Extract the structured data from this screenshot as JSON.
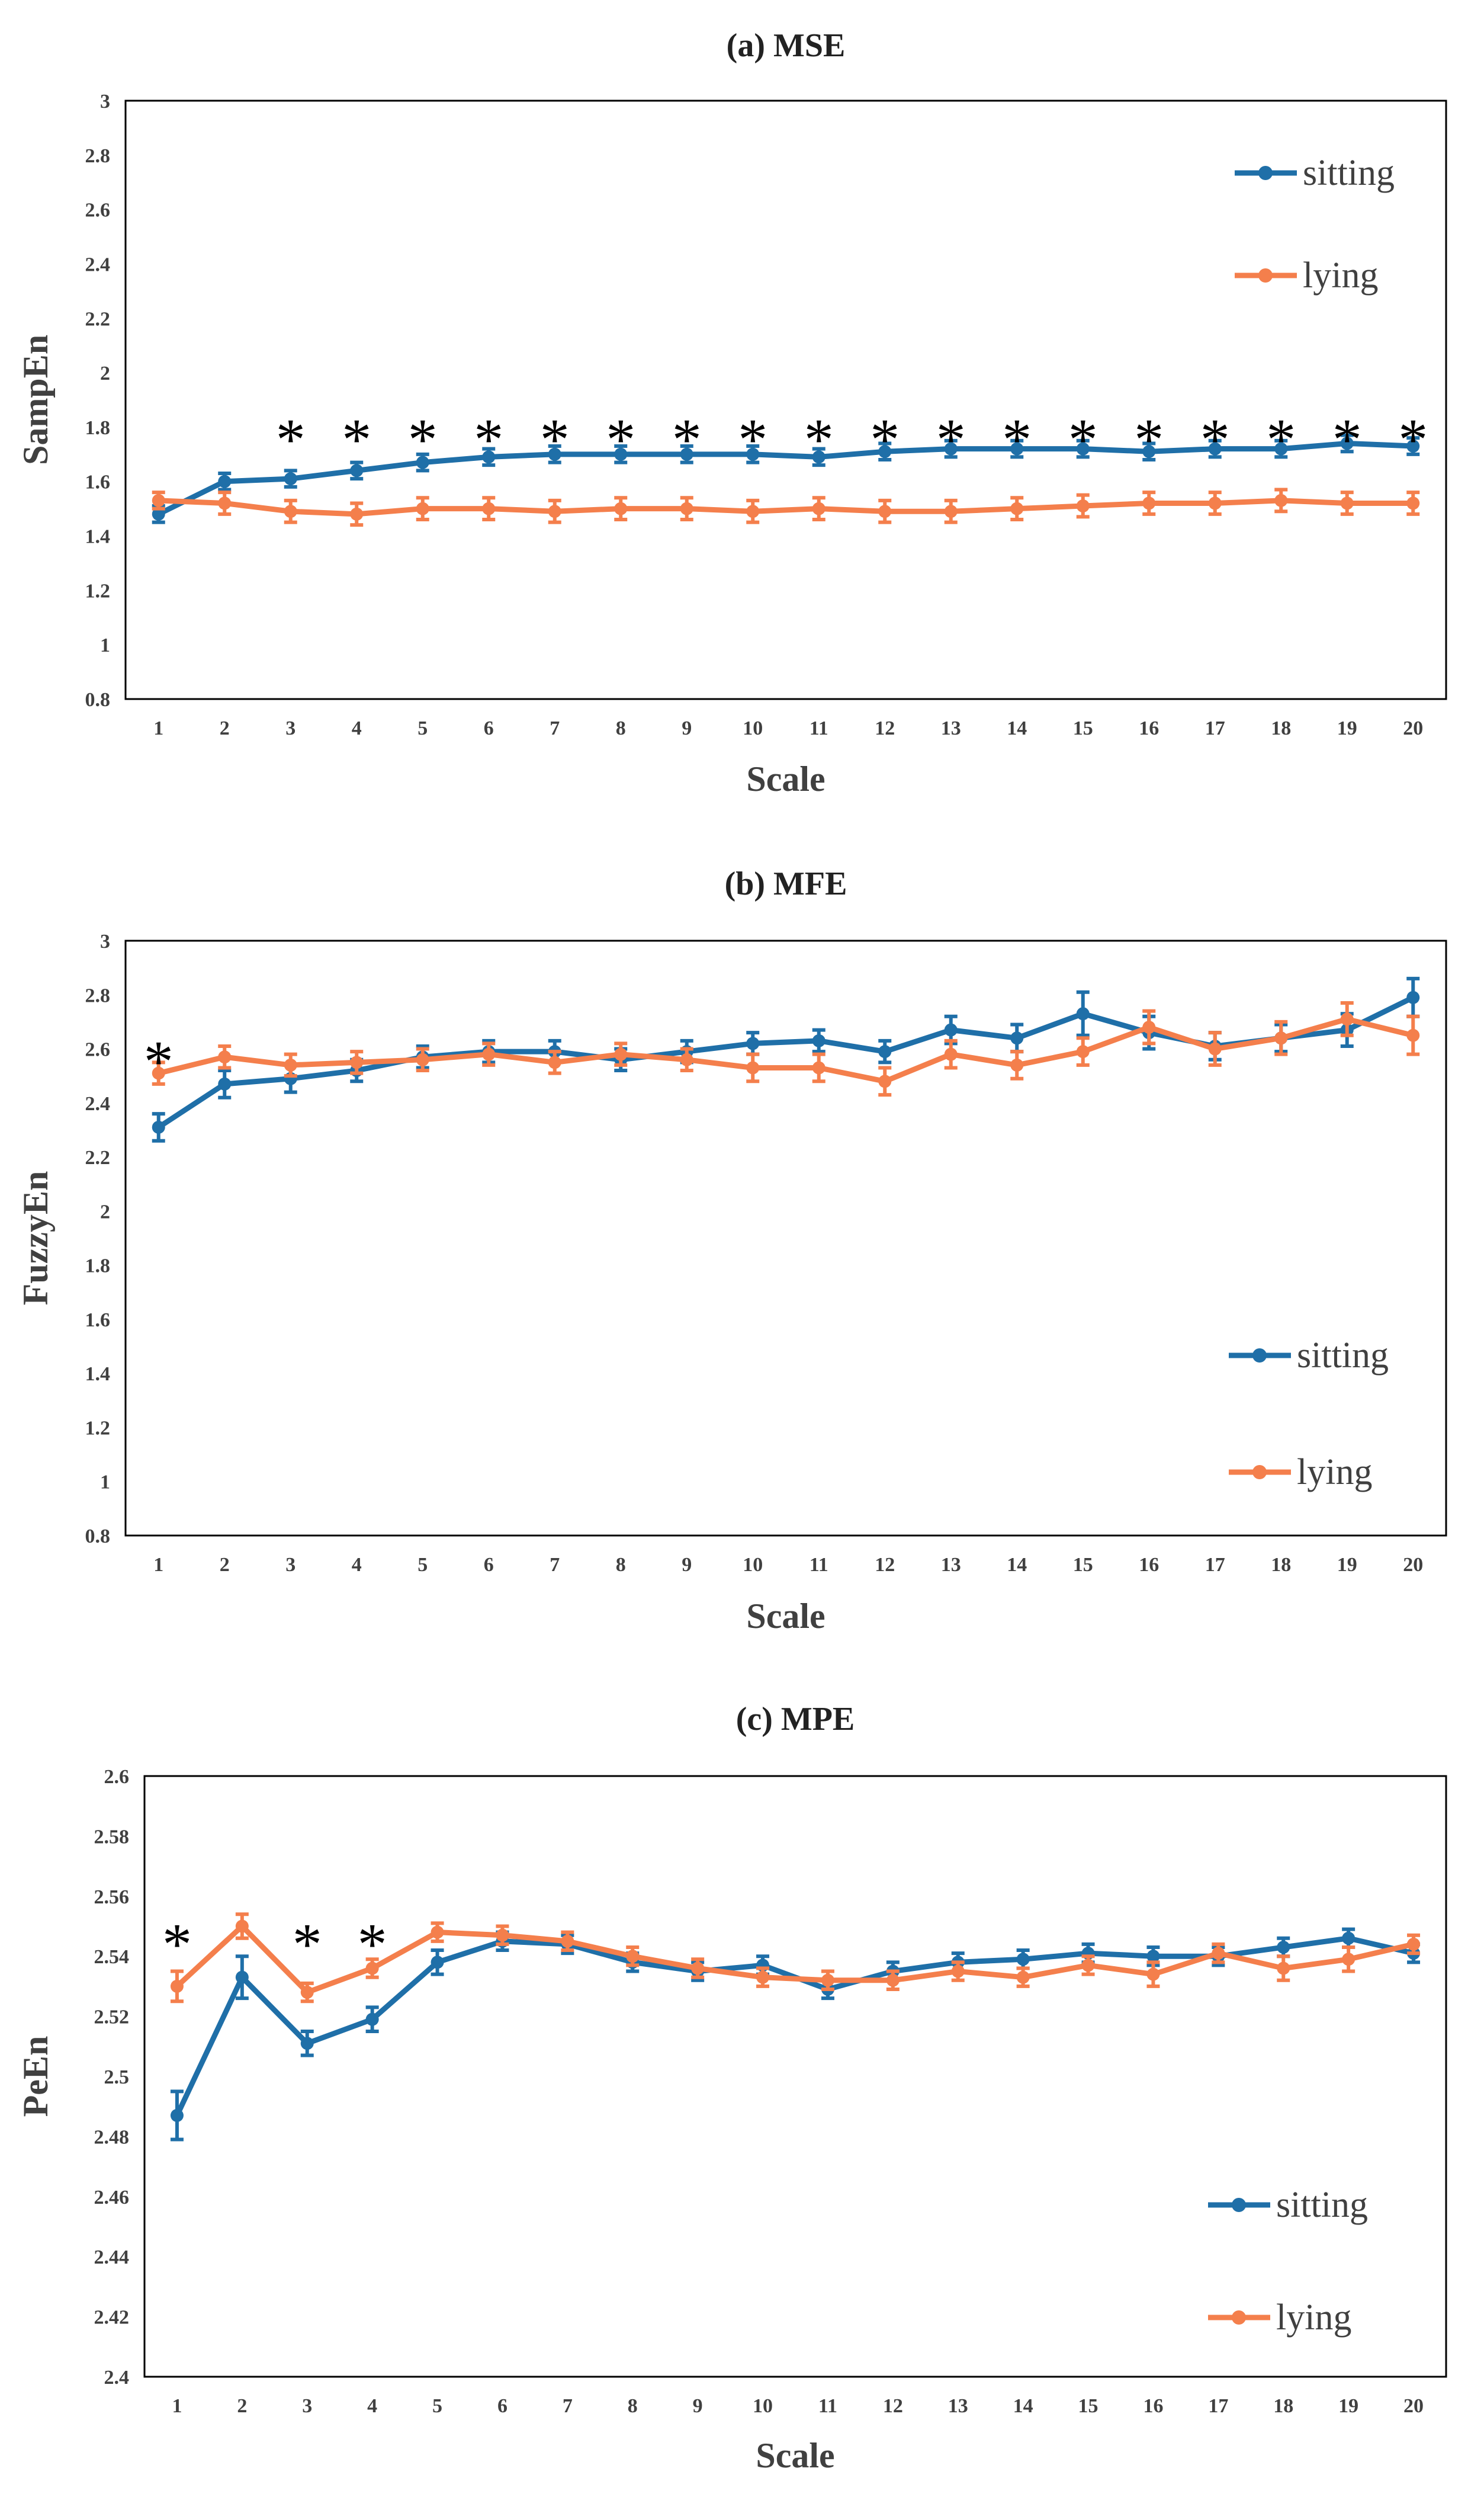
{
  "chart_data": [
    {
      "type": "line",
      "title": "(a) MSE",
      "xlabel": "Scale",
      "ylabel": "SampEn",
      "ylim": [
        0.8,
        3
      ],
      "yticks": [
        0.8,
        1,
        1.2,
        1.4,
        1.6,
        1.8,
        2,
        2.2,
        2.4,
        2.6,
        2.8,
        3
      ],
      "ytick_labels": [
        "0.8",
        "1",
        "1.2",
        "1.4",
        "1.6",
        "1.8",
        "2",
        "2.2",
        "2.4",
        "2.6",
        "2.8",
        "3"
      ],
      "categories": [
        "1",
        "2",
        "3",
        "4",
        "5",
        "6",
        "7",
        "8",
        "9",
        "10",
        "11",
        "12",
        "13",
        "14",
        "15",
        "16",
        "17",
        "18",
        "19",
        "20"
      ],
      "legend_position": "top-right",
      "annotation_symbol": "*",
      "significant_scales": [
        3,
        4,
        5,
        6,
        7,
        8,
        9,
        10,
        11,
        12,
        13,
        14,
        15,
        16,
        17,
        18,
        19,
        20
      ],
      "series": [
        {
          "name": "sitting",
          "color": "#1f6fa8",
          "values": [
            1.48,
            1.6,
            1.61,
            1.64,
            1.67,
            1.69,
            1.7,
            1.7,
            1.7,
            1.7,
            1.69,
            1.71,
            1.72,
            1.72,
            1.72,
            1.71,
            1.72,
            1.72,
            1.74,
            1.73
          ],
          "errors": [
            0.03,
            0.03,
            0.03,
            0.03,
            0.03,
            0.03,
            0.03,
            0.03,
            0.03,
            0.03,
            0.03,
            0.03,
            0.03,
            0.03,
            0.03,
            0.03,
            0.03,
            0.03,
            0.03,
            0.03
          ]
        },
        {
          "name": "lying",
          "color": "#f47f4c",
          "values": [
            1.53,
            1.52,
            1.49,
            1.48,
            1.5,
            1.5,
            1.49,
            1.5,
            1.5,
            1.49,
            1.5,
            1.49,
            1.49,
            1.5,
            1.51,
            1.52,
            1.52,
            1.53,
            1.52,
            1.52
          ],
          "errors": [
            0.03,
            0.04,
            0.04,
            0.04,
            0.04,
            0.04,
            0.04,
            0.04,
            0.04,
            0.04,
            0.04,
            0.04,
            0.04,
            0.04,
            0.04,
            0.04,
            0.04,
            0.04,
            0.04,
            0.04
          ]
        }
      ]
    },
    {
      "type": "line",
      "title": "(b) MFE",
      "xlabel": "Scale",
      "ylabel": "FuzzyEn",
      "ylim": [
        0.8,
        3
      ],
      "yticks": [
        0.8,
        1,
        1.2,
        1.4,
        1.6,
        1.8,
        2,
        2.2,
        2.4,
        2.6,
        2.8,
        3
      ],
      "ytick_labels": [
        "0.8",
        "1",
        "1.2",
        "1.4",
        "1.6",
        "1.8",
        "2",
        "2.2",
        "2.4",
        "2.6",
        "2.8",
        "3"
      ],
      "categories": [
        "1",
        "2",
        "3",
        "4",
        "5",
        "6",
        "7",
        "8",
        "9",
        "10",
        "11",
        "12",
        "13",
        "14",
        "15",
        "16",
        "17",
        "18",
        "19",
        "20"
      ],
      "legend_position": "bottom-right",
      "annotation_symbol": "*",
      "significant_scales": [
        1
      ],
      "series": [
        {
          "name": "sitting",
          "color": "#1f6fa8",
          "values": [
            2.31,
            2.47,
            2.49,
            2.52,
            2.57,
            2.59,
            2.59,
            2.56,
            2.59,
            2.62,
            2.63,
            2.59,
            2.67,
            2.64,
            2.73,
            2.66,
            2.61,
            2.64,
            2.67,
            2.79
          ],
          "errors": [
            0.05,
            0.05,
            0.05,
            0.04,
            0.04,
            0.04,
            0.04,
            0.04,
            0.04,
            0.04,
            0.04,
            0.04,
            0.05,
            0.05,
            0.08,
            0.06,
            0.05,
            0.05,
            0.06,
            0.07
          ]
        },
        {
          "name": "lying",
          "color": "#f47f4c",
          "values": [
            2.51,
            2.57,
            2.54,
            2.55,
            2.56,
            2.58,
            2.55,
            2.58,
            2.56,
            2.53,
            2.53,
            2.48,
            2.58,
            2.54,
            2.59,
            2.68,
            2.6,
            2.64,
            2.71,
            2.65
          ],
          "errors": [
            0.04,
            0.04,
            0.04,
            0.04,
            0.04,
            0.04,
            0.04,
            0.04,
            0.04,
            0.05,
            0.05,
            0.05,
            0.05,
            0.05,
            0.05,
            0.06,
            0.06,
            0.06,
            0.06,
            0.07
          ]
        }
      ]
    },
    {
      "type": "line",
      "title": "(c) MPE",
      "xlabel": "Scale",
      "ylabel": "PeEn",
      "ylim": [
        2.4,
        2.6
      ],
      "yticks": [
        2.4,
        2.42,
        2.44,
        2.46,
        2.48,
        2.5,
        2.52,
        2.54,
        2.56,
        2.58,
        2.6
      ],
      "ytick_labels": [
        "2.4",
        "2.42",
        "2.44",
        "2.46",
        "2.48",
        "2.5",
        "2.52",
        "2.54",
        "2.56",
        "2.58",
        "2.6"
      ],
      "categories": [
        "1",
        "2",
        "3",
        "4",
        "5",
        "6",
        "7",
        "8",
        "9",
        "10",
        "11",
        "12",
        "13",
        "14",
        "15",
        "16",
        "17",
        "18",
        "19",
        "20"
      ],
      "legend_position": "bottom-right",
      "annotation_symbol": "*",
      "significant_scales": [
        1,
        3,
        4
      ],
      "series": [
        {
          "name": "sitting",
          "color": "#1f6fa8",
          "values": [
            2.487,
            2.533,
            2.511,
            2.519,
            2.538,
            2.545,
            2.544,
            2.538,
            2.535,
            2.537,
            2.529,
            2.535,
            2.538,
            2.539,
            2.541,
            2.54,
            2.54,
            2.543,
            2.546,
            2.541
          ],
          "errors": [
            0.008,
            0.007,
            0.004,
            0.004,
            0.004,
            0.003,
            0.003,
            0.003,
            0.003,
            0.003,
            0.003,
            0.003,
            0.003,
            0.003,
            0.003,
            0.003,
            0.003,
            0.003,
            0.003,
            0.003
          ]
        },
        {
          "name": "lying",
          "color": "#f47f4c",
          "values": [
            2.53,
            2.55,
            2.528,
            2.536,
            2.548,
            2.547,
            2.545,
            2.54,
            2.536,
            2.533,
            2.532,
            2.532,
            2.535,
            2.533,
            2.537,
            2.534,
            2.541,
            2.536,
            2.539,
            2.544
          ],
          "errors": [
            0.005,
            0.004,
            0.003,
            0.003,
            0.003,
            0.003,
            0.003,
            0.003,
            0.003,
            0.003,
            0.003,
            0.003,
            0.003,
            0.003,
            0.003,
            0.004,
            0.003,
            0.004,
            0.004,
            0.003
          ]
        }
      ]
    }
  ]
}
